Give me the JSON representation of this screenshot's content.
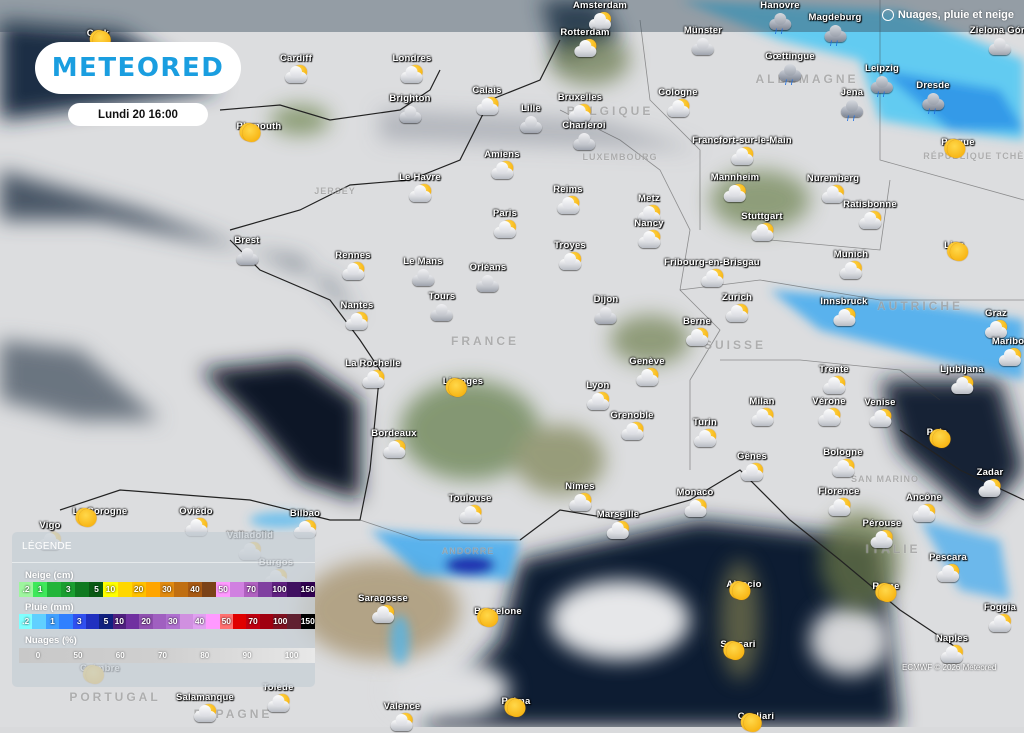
{
  "header": {
    "logo": "METEORED",
    "datetime": "Lundi 20 16:00",
    "layer_title": "Nuages, pluie et neige",
    "layer_icon": "globe-icon"
  },
  "credit": "ECMWF © 2026 Meteored",
  "colors": {
    "brand": "#1a9ee0",
    "sea": "#0f1f33",
    "cloud": "#e4e5e7",
    "rain": "#38b8f0"
  },
  "legend": {
    "title": "LÉGENDE",
    "snow": {
      "label": "Neige (cm)",
      "cells": [
        {
          "t": ".2",
          "c": "#9ef59e"
        },
        {
          "t": "1",
          "c": "#3ee85a"
        },
        {
          "t": "",
          "c": "#22b53a"
        },
        {
          "t": "3",
          "c": "#1a9e30"
        },
        {
          "t": "",
          "c": "#0f7a20"
        },
        {
          "t": "5",
          "c": "#0a5a14"
        },
        {
          "t": "10",
          "c": "#ffff00"
        },
        {
          "t": "",
          "c": "#ffd700"
        },
        {
          "t": "20",
          "c": "#ffc000"
        },
        {
          "t": "",
          "c": "#ffa500"
        },
        {
          "t": "30",
          "c": "#e08a10"
        },
        {
          "t": "",
          "c": "#c06f12"
        },
        {
          "t": "40",
          "c": "#a85a14"
        },
        {
          "t": "",
          "c": "#7a4218"
        },
        {
          "t": "50",
          "c": "#ff99ff"
        },
        {
          "t": "",
          "c": "#d080e0"
        },
        {
          "t": "70",
          "c": "#b060c0"
        },
        {
          "t": "",
          "c": "#8040a0"
        },
        {
          "t": "100",
          "c": "#602080"
        },
        {
          "t": "",
          "c": "#401060"
        },
        {
          "t": "150",
          "c": "#300050"
        }
      ]
    },
    "rain": {
      "label": "Pluie (mm)",
      "cells": [
        {
          "t": ".2",
          "c": "#80ffff"
        },
        {
          "t": "",
          "c": "#60d0ff"
        },
        {
          "t": "1",
          "c": "#40a0ff"
        },
        {
          "t": "",
          "c": "#3080ff"
        },
        {
          "t": "3",
          "c": "#3050f0"
        },
        {
          "t": "",
          "c": "#2030c0"
        },
        {
          "t": "5",
          "c": "#102080"
        },
        {
          "t": "10",
          "c": "#502080"
        },
        {
          "t": "",
          "c": "#7030a0"
        },
        {
          "t": "20",
          "c": "#9050b0"
        },
        {
          "t": "",
          "c": "#a060c0"
        },
        {
          "t": "30",
          "c": "#b070d0"
        },
        {
          "t": "",
          "c": "#d090e0"
        },
        {
          "t": "40",
          "c": "#e0a0f0"
        },
        {
          "t": "",
          "c": "#ff99ff"
        },
        {
          "t": "50",
          "c": "#ff7070"
        },
        {
          "t": "",
          "c": "#e00000"
        },
        {
          "t": "70",
          "c": "#c00010"
        },
        {
          "t": "",
          "c": "#a00010"
        },
        {
          "t": "100",
          "c": "#801020"
        },
        {
          "t": "",
          "c": "#602030"
        },
        {
          "t": "150",
          "c": "#000000"
        }
      ]
    },
    "clouds": {
      "label": "Nuages (%)",
      "ticks": [
        "0",
        "50",
        "60",
        "70",
        "80",
        "90",
        "100"
      ]
    }
  },
  "countries": [
    "BELGIQUE",
    "LUXEMBOURG",
    "ALLEMAGNE",
    "FRANCE",
    "SUISSE",
    "AUTRICHE",
    "ITALIE",
    "ESPAGNE",
    "PORTUGAL",
    "JERSEY",
    "SAN MARINO",
    "ANDORRE",
    "RÉPUBLIQUE TCHÈQUE"
  ],
  "cities": [
    {
      "name": "Amsterdam",
      "icon": "partly"
    },
    {
      "name": "Hanovre",
      "icon": "rain"
    },
    {
      "name": "Magdeburg",
      "icon": "rain"
    },
    {
      "name": "Zielona Góra",
      "icon": "cloudy"
    },
    {
      "name": "Cork",
      "icon": "sun"
    },
    {
      "name": "Cardiff",
      "icon": "partly"
    },
    {
      "name": "Londres",
      "icon": "partly"
    },
    {
      "name": "Rotterdam",
      "icon": "partly"
    },
    {
      "name": "Münster",
      "icon": "cloudy"
    },
    {
      "name": "Gœttingue",
      "icon": "rain"
    },
    {
      "name": "Leipzig",
      "icon": "rain"
    },
    {
      "name": "Jena",
      "icon": "rain"
    },
    {
      "name": "Dresde",
      "icon": "rain"
    },
    {
      "name": "Brighton",
      "icon": "cloudy"
    },
    {
      "name": "Calais",
      "icon": "partly"
    },
    {
      "name": "Bruxelles",
      "icon": "partly"
    },
    {
      "name": "Lille",
      "icon": "cloudy"
    },
    {
      "name": "Charleroi",
      "icon": "cloudy"
    },
    {
      "name": "Cologne",
      "icon": "partly"
    },
    {
      "name": "Plymouth",
      "icon": "sun"
    },
    {
      "name": "Prague",
      "icon": "sun"
    },
    {
      "name": "Francfort-sur-le-Main",
      "icon": "partly"
    },
    {
      "name": "Amiens",
      "icon": "partly"
    },
    {
      "name": "Le Havre",
      "icon": "partly"
    },
    {
      "name": "Mannheim",
      "icon": "partly"
    },
    {
      "name": "Nuremberg",
      "icon": "partly"
    },
    {
      "name": "Reims",
      "icon": "partly"
    },
    {
      "name": "Metz",
      "icon": "partly"
    },
    {
      "name": "Ratisbonne",
      "icon": "partly"
    },
    {
      "name": "Paris",
      "icon": "partly"
    },
    {
      "name": "Stuttgart",
      "icon": "partly"
    },
    {
      "name": "Nancy",
      "icon": "partly"
    },
    {
      "name": "Brest",
      "icon": "cloudy"
    },
    {
      "name": "Troyes",
      "icon": "partly"
    },
    {
      "name": "Munich",
      "icon": "partly"
    },
    {
      "name": "Linz",
      "icon": "sun"
    },
    {
      "name": "Rennes",
      "icon": "partly"
    },
    {
      "name": "Le Mans",
      "icon": "cloudy"
    },
    {
      "name": "Orléans",
      "icon": "cloudy"
    },
    {
      "name": "Fribourg-en-Brisgau",
      "icon": "partly"
    },
    {
      "name": "Zurich",
      "icon": "partly"
    },
    {
      "name": "Innsbruck",
      "icon": "partly"
    },
    {
      "name": "Tours",
      "icon": "cloudy"
    },
    {
      "name": "Dijon",
      "icon": "cloudy"
    },
    {
      "name": "Nantes",
      "icon": "partly"
    },
    {
      "name": "Graz",
      "icon": "partly"
    },
    {
      "name": "Berne",
      "icon": "partly"
    },
    {
      "name": "Maribor",
      "icon": "partly"
    },
    {
      "name": "Genève",
      "icon": "partly"
    },
    {
      "name": "La Rochelle",
      "icon": "partly"
    },
    {
      "name": "Trente",
      "icon": "partly"
    },
    {
      "name": "Ljubljana",
      "icon": "partly"
    },
    {
      "name": "Limoges",
      "icon": "sun"
    },
    {
      "name": "Lyon",
      "icon": "partly"
    },
    {
      "name": "Milan",
      "icon": "partly"
    },
    {
      "name": "Vérone",
      "icon": "partly"
    },
    {
      "name": "Venise",
      "icon": "partly"
    },
    {
      "name": "Grenoble",
      "icon": "partly"
    },
    {
      "name": "Bordeaux",
      "icon": "partly"
    },
    {
      "name": "Pula",
      "icon": "sun"
    },
    {
      "name": "Turin",
      "icon": "partly"
    },
    {
      "name": "Bologne",
      "icon": "partly"
    },
    {
      "name": "Gênes",
      "icon": "partly"
    },
    {
      "name": "Zadar",
      "icon": "partly"
    },
    {
      "name": "Nîmes",
      "icon": "partly"
    },
    {
      "name": "Monaco",
      "icon": "partly"
    },
    {
      "name": "Florence",
      "icon": "partly"
    },
    {
      "name": "Ancône",
      "icon": "partly"
    },
    {
      "name": "Toulouse",
      "icon": "partly"
    },
    {
      "name": "La Corogne",
      "icon": "sun"
    },
    {
      "name": "Oviédo",
      "icon": "partly"
    },
    {
      "name": "Marseille",
      "icon": "partly"
    },
    {
      "name": "Bilbao",
      "icon": "partly"
    },
    {
      "name": "Pérouse",
      "icon": "partly"
    },
    {
      "name": "Burgos",
      "icon": "partly"
    },
    {
      "name": "Vigo",
      "icon": "partly"
    },
    {
      "name": "Pescara",
      "icon": "partly"
    },
    {
      "name": "Ajaccio",
      "icon": "sun"
    },
    {
      "name": "Rome",
      "icon": "sun"
    },
    {
      "name": "Saragosse",
      "icon": "partly"
    },
    {
      "name": "Barcelone",
      "icon": "sun"
    },
    {
      "name": "Foggia",
      "icon": "partly"
    },
    {
      "name": "Valladolid",
      "icon": "partly"
    },
    {
      "name": "Salamanque",
      "icon": "partly"
    },
    {
      "name": "Sassari",
      "icon": "sun"
    },
    {
      "name": "Naples",
      "icon": "partly"
    },
    {
      "name": "Coimbre",
      "icon": "sun"
    },
    {
      "name": "Tolède",
      "icon": "partly"
    },
    {
      "name": "Valence",
      "icon": "partly"
    },
    {
      "name": "Palma",
      "icon": "sun"
    },
    {
      "name": "Cagliari",
      "icon": "sun"
    }
  ]
}
